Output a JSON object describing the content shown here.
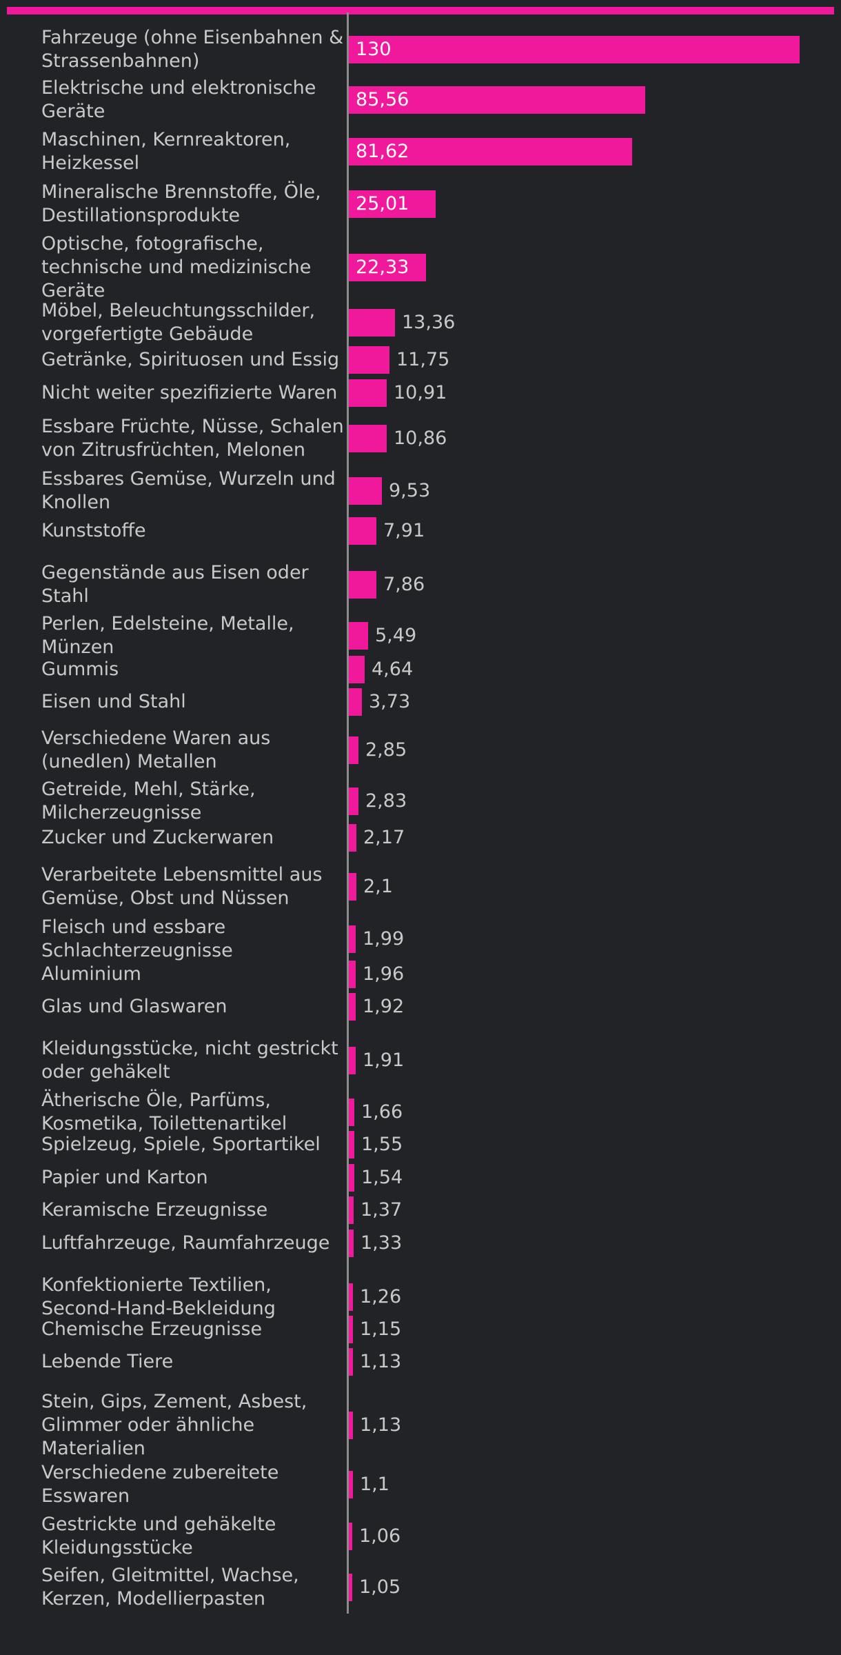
{
  "colors": {
    "background": "#222326",
    "bar": "#f0189b",
    "label_text": "#c9c9c9",
    "value_inside": "#ffffff",
    "value_outside": "#c9c9c9",
    "axis": "#8c8c8c"
  },
  "chart_data": {
    "type": "bar",
    "orientation": "horizontal",
    "title": "",
    "xlabel": "",
    "ylabel": "",
    "grid": false,
    "xlim": [
      0,
      130
    ],
    "categories": [
      "Fahrzeuge (ohne Eisenbahnen & Strassenbahnen)",
      "Elektrische und elektronische Geräte",
      "Maschinen, Kernreaktoren, Heizkessel",
      "Mineralische Brennstoffe, Öle, Destillationsprodukte",
      "Optische, fotografische, technische und medizinische Geräte",
      "Möbel, Beleuchtungsschilder, vorgefertigte Gebäude",
      "Getränke, Spirituosen und Essig",
      "Nicht weiter spezifizierte Waren",
      "Essbare Früchte, Nüsse, Schalen von Zitrusfrüchten, Melonen",
      "Essbares Gemüse, Wurzeln und Knollen",
      "Kunststoffe",
      "Gegenstände aus Eisen oder Stahl",
      "Perlen, Edelsteine, Metalle, Münzen",
      "Gummis",
      "Eisen und Stahl",
      "Verschiedene Waren aus (unedlen) Metallen",
      "Getreide, Mehl, Stärke, Milcherzeugnisse",
      "Zucker und Zuckerwaren",
      "Verarbeitete Lebensmittel aus Gemüse, Obst und Nüssen",
      "Fleisch und essbare Schlachterzeugnisse",
      "Aluminium",
      "Glas und Glaswaren",
      "Kleidungsstücke, nicht gestrickt oder gehäkelt",
      "Ätherische Öle, Parfüms, Kosmetika, Toilettenartikel",
      "Spielzeug, Spiele, Sportartikel",
      "Papier und Karton",
      "Keramische Erzeugnisse",
      "Luftfahrzeuge, Raumfahrzeuge",
      "Konfektionierte Textilien, Second-Hand-Bekleidung",
      "Chemische Erzeugnisse",
      "Lebende Tiere",
      "Stein, Gips, Zement, Asbest, Glimmer oder ähnliche Materialien",
      "Verschiedene zubereitete Esswaren",
      "Gestrickte und gehäkelte Kleidungsstücke",
      "Seifen, Gleitmittel, Wachse, Kerzen, Modellierpasten"
    ],
    "values": [
      130,
      85.56,
      81.62,
      25.01,
      22.33,
      13.36,
      11.75,
      10.91,
      10.86,
      9.53,
      7.91,
      7.86,
      5.49,
      4.64,
      3.73,
      2.85,
      2.83,
      2.17,
      2.1,
      1.99,
      1.96,
      1.92,
      1.91,
      1.66,
      1.55,
      1.54,
      1.37,
      1.33,
      1.26,
      1.15,
      1.13,
      1.13,
      1.1,
      1.06,
      1.05
    ],
    "value_labels": [
      "130",
      "85,56",
      "81,62",
      "25,01",
      "22,33",
      "13,36",
      "11,75",
      "10,91",
      "10,86",
      "9,53",
      "7,91",
      "7,86",
      "5,49",
      "4,64",
      "3,73",
      "2,85",
      "2,83",
      "2,17",
      "2,1",
      "1,99",
      "1,96",
      "1,92",
      "1,91",
      "1,66",
      "1,55",
      "1,54",
      "1,37",
      "1,33",
      "1,26",
      "1,15",
      "1,13",
      "1,13",
      "1,1",
      "1,06",
      "1,05"
    ]
  }
}
